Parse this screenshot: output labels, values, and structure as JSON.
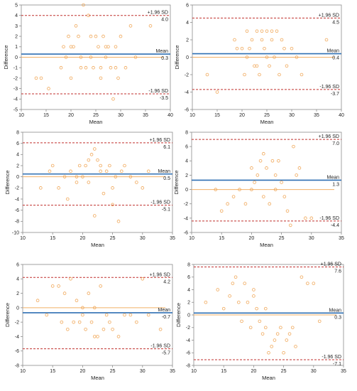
{
  "colors": {
    "mean_line": "#2e6fb3",
    "loa_line": "#c0302f",
    "zero_line": "#f2b066",
    "points": "#f0a85a",
    "frame": "#8c8c8c",
    "text": "#222222"
  },
  "chart_data": [
    {
      "type": "scatter",
      "xlabel": "Mean",
      "ylabel": "Difference",
      "xlim": [
        10,
        40
      ],
      "ylim": [
        -5,
        5
      ],
      "xticks": [
        10,
        15,
        20,
        25,
        30,
        35,
        40
      ],
      "yticks": [
        -5,
        -4,
        -3,
        -2,
        -1,
        0,
        1,
        2,
        3,
        4,
        5
      ],
      "mean": 0.3,
      "upper_loa": 4.0,
      "lower_loa": -3.5,
      "mean_text": "Mean",
      "mean_value_text": "0.3",
      "upper_text": "+1.96 SD",
      "upper_value_text": "4.0",
      "lower_text": "-1.96 SD",
      "lower_value_text": "-3.5",
      "points": [
        [
          13,
          -2
        ],
        [
          14,
          -2
        ],
        [
          15.5,
          -3
        ],
        [
          18.5,
          1
        ],
        [
          19,
          0
        ],
        [
          19.5,
          2
        ],
        [
          20,
          1
        ],
        [
          20.5,
          1
        ],
        [
          21,
          3
        ],
        [
          21.5,
          2
        ],
        [
          22,
          0
        ],
        [
          22.5,
          5
        ],
        [
          23,
          -1
        ],
        [
          23.5,
          4
        ],
        [
          24,
          2
        ],
        [
          24.5,
          -1
        ],
        [
          25,
          2
        ],
        [
          25.5,
          1
        ],
        [
          26,
          -1
        ],
        [
          26.5,
          2
        ],
        [
          27,
          0
        ],
        [
          27.5,
          1
        ],
        [
          28,
          -1
        ],
        [
          28.5,
          -4
        ],
        [
          29,
          1
        ],
        [
          29.5,
          -2
        ],
        [
          30,
          2
        ],
        [
          31,
          -1
        ],
        [
          32,
          3
        ],
        [
          33,
          0
        ],
        [
          36,
          3
        ],
        [
          22,
          -1
        ],
        [
          20,
          -2
        ],
        [
          24,
          0
        ],
        [
          26,
          -2
        ],
        [
          29,
          -1
        ],
        [
          18,
          -1
        ],
        [
          27,
          1
        ]
      ]
    },
    {
      "type": "scatter",
      "xlabel": "Mean",
      "ylabel": "Difference",
      "xlim": [
        10,
        40
      ],
      "ylim": [
        -6,
        6
      ],
      "xticks": [
        10,
        15,
        20,
        25,
        30,
        35,
        40
      ],
      "yticks": [
        -6,
        -4,
        -2,
        0,
        2,
        4,
        6
      ],
      "mean": 0.4,
      "upper_loa": 4.5,
      "lower_loa": -3.7,
      "mean_text": "Mean",
      "mean_value_text": "0.4",
      "upper_text": "+1.96 SD",
      "upper_value_text": "4.5",
      "lower_text": "-1.96 SD",
      "lower_value_text": "-3.7",
      "points": [
        [
          13,
          -2
        ],
        [
          15,
          -4
        ],
        [
          18.5,
          2
        ],
        [
          19,
          1
        ],
        [
          20,
          1
        ],
        [
          20.5,
          -2
        ],
        [
          21,
          0
        ],
        [
          21.5,
          1
        ],
        [
          22,
          2
        ],
        [
          22.5,
          -1
        ],
        [
          23,
          3
        ],
        [
          23.5,
          -2
        ],
        [
          24,
          2
        ],
        [
          24.5,
          1
        ],
        [
          25,
          3
        ],
        [
          25.5,
          -1
        ],
        [
          26,
          2
        ],
        [
          26.5,
          0
        ],
        [
          27,
          3
        ],
        [
          27.5,
          -2
        ],
        [
          28,
          2
        ],
        [
          28.5,
          1
        ],
        [
          29,
          -1
        ],
        [
          30,
          1
        ],
        [
          31,
          0
        ],
        [
          32,
          -2
        ],
        [
          37,
          2
        ],
        [
          23,
          -1
        ],
        [
          25,
          0
        ],
        [
          21,
          3
        ],
        [
          24,
          3
        ],
        [
          26,
          3
        ]
      ]
    },
    {
      "type": "scatter",
      "xlabel": "Mean",
      "ylabel": "Difference",
      "xlim": [
        10,
        35
      ],
      "ylim": [
        -10,
        8
      ],
      "xticks": [
        10,
        15,
        20,
        25,
        30,
        35
      ],
      "yticks": [
        -10,
        -8,
        -6,
        -4,
        -2,
        0,
        2,
        4,
        6,
        8
      ],
      "mean": 0.5,
      "upper_loa": 6.1,
      "lower_loa": -5.1,
      "mean_text": "Mean",
      "mean_value_text": "0.5",
      "upper_text": "+1.96 SD",
      "upper_value_text": "6.1",
      "lower_text": "-1.96 SD",
      "lower_value_text": "-5.1",
      "points": [
        [
          13,
          -2
        ],
        [
          14.5,
          1
        ],
        [
          15,
          2
        ],
        [
          16,
          -2
        ],
        [
          17,
          0
        ],
        [
          17.5,
          -4
        ],
        [
          18,
          1
        ],
        [
          19,
          -1
        ],
        [
          19.5,
          2
        ],
        [
          20,
          0
        ],
        [
          20.5,
          2
        ],
        [
          21,
          3
        ],
        [
          21.5,
          4
        ],
        [
          22,
          5
        ],
        [
          22.5,
          3
        ],
        [
          23,
          2
        ],
        [
          23.5,
          -3
        ],
        [
          24,
          1
        ],
        [
          24.5,
          2
        ],
        [
          25,
          -2
        ],
        [
          25.5,
          0
        ],
        [
          26,
          -8
        ],
        [
          26.5,
          1
        ],
        [
          27,
          2
        ],
        [
          28,
          0
        ],
        [
          29,
          -1
        ],
        [
          30,
          -2
        ],
        [
          31,
          1
        ],
        [
          22,
          -7
        ],
        [
          21,
          -1
        ],
        [
          23,
          1
        ],
        [
          25,
          -5
        ],
        [
          19,
          0
        ]
      ]
    },
    {
      "type": "scatter",
      "xlabel": "Mean",
      "ylabel": "Difference",
      "xlim": [
        10,
        35
      ],
      "ylim": [
        -6,
        8
      ],
      "xticks": [
        10,
        15,
        20,
        25,
        30,
        35
      ],
      "yticks": [
        -6,
        -4,
        -2,
        0,
        2,
        4,
        6,
        8
      ],
      "mean": 1.3,
      "upper_loa": 7.0,
      "lower_loa": -4.4,
      "mean_text": "Mean",
      "mean_value_text": "1.3",
      "upper_text": "+1.96 SD",
      "upper_value_text": "7.0",
      "lower_text": "-1.96 SD",
      "lower_value_text": "-4.4",
      "points": [
        [
          14,
          0
        ],
        [
          15,
          -3
        ],
        [
          16,
          -2
        ],
        [
          17,
          -1
        ],
        [
          18,
          0
        ],
        [
          19,
          -2
        ],
        [
          20,
          3
        ],
        [
          20.5,
          1
        ],
        [
          21,
          2
        ],
        [
          21.5,
          4
        ],
        [
          22,
          5
        ],
        [
          22.5,
          3
        ],
        [
          23,
          -2
        ],
        [
          23.5,
          4
        ],
        [
          24,
          2
        ],
        [
          24.5,
          4
        ],
        [
          25,
          1
        ],
        [
          25.5,
          -1
        ],
        [
          26,
          -3
        ],
        [
          26.5,
          -5
        ],
        [
          27,
          6
        ],
        [
          27.5,
          2
        ],
        [
          28,
          3
        ],
        [
          29,
          -4
        ],
        [
          30,
          -4
        ],
        [
          20,
          0
        ],
        [
          22,
          -1
        ],
        [
          24,
          0
        ]
      ]
    },
    {
      "type": "scatter",
      "xlabel": "Mean",
      "ylabel": "Difference",
      "xlim": [
        10,
        35
      ],
      "ylim": [
        -8,
        6
      ],
      "xticks": [
        10,
        15,
        20,
        25,
        30,
        35
      ],
      "yticks": [
        -8,
        -6,
        -4,
        -2,
        0,
        2,
        4,
        6
      ],
      "mean": -0.7,
      "upper_loa": 4.2,
      "lower_loa": -5.7,
      "mean_text": "Mean",
      "mean_value_text": "-0.7",
      "upper_text": "+1.96 SD",
      "upper_value_text": "4.2",
      "lower_text": "-1.96 SD",
      "lower_value_text": "-5.7",
      "points": [
        [
          12.5,
          1
        ],
        [
          14,
          -1
        ],
        [
          15,
          3
        ],
        [
          16,
          3
        ],
        [
          16.5,
          -2
        ],
        [
          17,
          2
        ],
        [
          17.5,
          -3
        ],
        [
          18,
          4
        ],
        [
          18.5,
          -2
        ],
        [
          19,
          1
        ],
        [
          19.5,
          -2
        ],
        [
          20,
          0
        ],
        [
          20.5,
          -3
        ],
        [
          21,
          2
        ],
        [
          21.5,
          -2
        ],
        [
          22,
          0
        ],
        [
          22.5,
          -4
        ],
        [
          23,
          3
        ],
        [
          23.5,
          -3
        ],
        [
          24,
          -1
        ],
        [
          24.5,
          -2
        ],
        [
          25,
          -3
        ],
        [
          26,
          -4
        ],
        [
          27,
          -1
        ],
        [
          28,
          -1
        ],
        [
          29,
          -2
        ],
        [
          30,
          4
        ],
        [
          31,
          -1
        ],
        [
          33,
          -3
        ],
        [
          20,
          -1
        ],
        [
          22,
          -4
        ]
      ]
    },
    {
      "type": "scatter",
      "xlabel": "Mean",
      "ylabel": "Difference",
      "xlim": [
        10,
        35
      ],
      "ylim": [
        -8,
        8
      ],
      "xticks": [
        10,
        15,
        20,
        25,
        30,
        35
      ],
      "yticks": [
        -8,
        -6,
        -4,
        -2,
        0,
        2,
        4,
        6,
        8
      ],
      "mean": 0.3,
      "upper_loa": 7.6,
      "lower_loa": -7.1,
      "mean_text": "Mean",
      "mean_value_text": "0.3",
      "upper_text": "+1.96 SD",
      "upper_value_text": "7.6",
      "lower_text": "-1.96 SD",
      "lower_value_text": "-7.1",
      "points": [
        [
          12,
          2
        ],
        [
          14,
          4
        ],
        [
          15,
          1
        ],
        [
          16,
          3
        ],
        [
          16.5,
          5
        ],
        [
          17,
          6
        ],
        [
          17.5,
          2
        ],
        [
          18,
          -1
        ],
        [
          18.5,
          5
        ],
        [
          19,
          2
        ],
        [
          19.5,
          -2
        ],
        [
          20,
          3
        ],
        [
          20.5,
          1
        ],
        [
          21,
          -1
        ],
        [
          21.5,
          -3
        ],
        [
          22,
          -2
        ],
        [
          22.5,
          -6
        ],
        [
          23,
          -5
        ],
        [
          23.5,
          -4
        ],
        [
          24,
          -3
        ],
        [
          24.5,
          -2
        ],
        [
          25,
          -6
        ],
        [
          25.5,
          -4
        ],
        [
          26,
          -3
        ],
        [
          26.5,
          -2
        ],
        [
          27,
          -5
        ],
        [
          28,
          6
        ],
        [
          29,
          5
        ],
        [
          30,
          5
        ],
        [
          31,
          -1
        ],
        [
          20,
          4
        ],
        [
          22,
          1
        ]
      ]
    }
  ]
}
